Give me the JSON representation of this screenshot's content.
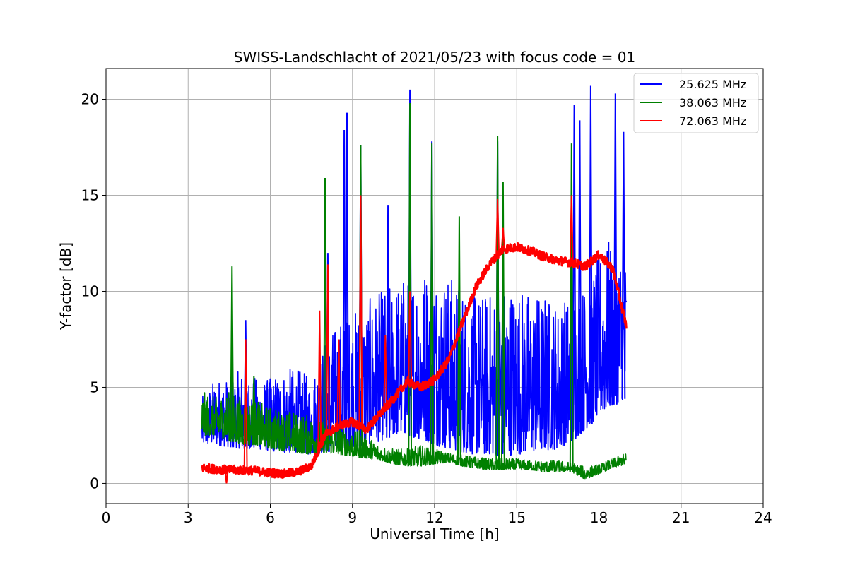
{
  "chart_data": {
    "type": "line",
    "title": "SWISS-Landschlacht of 2021/05/23 with focus code = 01",
    "xlabel": "Universal Time [h]",
    "ylabel": "Y-factor [dB]",
    "xlim": [
      0,
      24
    ],
    "ylim": [
      -1.05,
      21.6
    ],
    "xticks": [
      "0",
      "3",
      "6",
      "9",
      "12",
      "15",
      "18",
      "21",
      "24"
    ],
    "yticks": [
      "0",
      "5",
      "10",
      "15",
      "20"
    ],
    "grid": true,
    "legend": "top-right",
    "series": [
      {
        "name": "25.625 MHz",
        "color": "#0000ff",
        "x": [
          3.5,
          4.0,
          4.5,
          5.0,
          5.5,
          6.0,
          6.5,
          7.0,
          7.5,
          8.0,
          8.5,
          9.0,
          9.5,
          10.0,
          10.5,
          11.0,
          11.5,
          12.0,
          12.5,
          13.0,
          13.5,
          14.0,
          14.5,
          15.0,
          15.5,
          16.0,
          16.5,
          17.0,
          17.5,
          18.0,
          18.5,
          19.0
        ],
        "low": [
          2.0,
          2.0,
          1.9,
          1.8,
          1.8,
          1.7,
          1.6,
          1.6,
          1.5,
          1.6,
          1.8,
          1.9,
          2.0,
          2.2,
          2.5,
          2.5,
          2.3,
          2.0,
          1.8,
          1.6,
          1.5,
          1.5,
          1.4,
          1.5,
          1.6,
          1.7,
          1.8,
          2.2,
          2.8,
          3.5,
          4.0,
          4.5
        ],
        "high": [
          4.5,
          5.5,
          5.5,
          6.0,
          5.5,
          5.5,
          6.0,
          6.0,
          5.5,
          7.5,
          8.5,
          9.0,
          9.5,
          10.0,
          10.5,
          11.0,
          11.5,
          11.5,
          11.0,
          10.5,
          10.0,
          10.0,
          10.5,
          10.5,
          10.0,
          10.0,
          9.5,
          10.0,
          10.5,
          12.0,
          13.0,
          12.0
        ],
        "spikes": [
          [
            4.6,
            7.0
          ],
          [
            5.1,
            8.5
          ],
          [
            8.1,
            12.0
          ],
          [
            8.7,
            18.4
          ],
          [
            8.8,
            19.3
          ],
          [
            9.3,
            17.6
          ],
          [
            10.3,
            14.5
          ],
          [
            11.1,
            20.5
          ],
          [
            11.9,
            17.8
          ],
          [
            14.3,
            17.8
          ],
          [
            17.1,
            19.7
          ],
          [
            17.3,
            18.9
          ],
          [
            17.7,
            20.7
          ],
          [
            18.6,
            20.3
          ],
          [
            18.9,
            18.3
          ]
        ]
      },
      {
        "name": "38.063 MHz",
        "color": "#008000",
        "x": [
          3.5,
          4.0,
          4.5,
          5.0,
          5.5,
          6.0,
          6.5,
          7.0,
          7.5,
          8.0,
          8.5,
          9.0,
          9.5,
          10.0,
          10.5,
          11.0,
          11.5,
          12.0,
          12.5,
          13.0,
          13.5,
          14.0,
          14.5,
          15.0,
          15.5,
          16.0,
          16.5,
          17.0,
          17.5,
          18.0,
          18.5,
          19.0
        ],
        "low": [
          2.5,
          2.5,
          2.2,
          2.0,
          2.0,
          1.8,
          1.7,
          1.6,
          1.5,
          1.6,
          1.5,
          1.4,
          1.3,
          1.2,
          1.0,
          0.9,
          0.9,
          1.0,
          1.1,
          0.9,
          0.8,
          0.7,
          0.7,
          0.7,
          0.7,
          0.6,
          0.6,
          0.6,
          0.2,
          0.5,
          0.8,
          1.0
        ],
        "high": [
          4.8,
          4.5,
          4.8,
          4.5,
          4.3,
          4.0,
          3.8,
          3.7,
          3.5,
          3.2,
          3.0,
          2.8,
          2.5,
          2.0,
          1.8,
          1.8,
          2.0,
          1.8,
          1.6,
          1.5,
          1.4,
          1.3,
          1.3,
          1.3,
          1.2,
          1.2,
          1.2,
          1.1,
          0.9,
          1.0,
          1.3,
          1.6
        ],
        "spikes": [
          [
            4.6,
            11.3
          ],
          [
            5.4,
            5.6
          ],
          [
            8.0,
            15.9
          ],
          [
            9.3,
            17.6
          ],
          [
            11.1,
            19.8
          ],
          [
            11.9,
            17.7
          ],
          [
            12.9,
            13.9
          ],
          [
            14.3,
            18.1
          ],
          [
            14.5,
            15.7
          ],
          [
            17.0,
            17.7
          ]
        ]
      },
      {
        "name": "72.063 MHz",
        "color": "#ff0000",
        "x": [
          3.5,
          4.0,
          4.5,
          5.0,
          5.5,
          6.0,
          6.5,
          7.0,
          7.5,
          8.0,
          8.5,
          9.0,
          9.5,
          10.0,
          10.5,
          11.0,
          11.5,
          12.0,
          12.5,
          13.0,
          13.5,
          14.0,
          14.5,
          15.0,
          15.5,
          16.0,
          16.5,
          17.0,
          17.5,
          18.0,
          18.5,
          19.0
        ],
        "y": [
          0.8,
          0.75,
          0.7,
          0.7,
          0.65,
          0.55,
          0.5,
          0.6,
          0.9,
          2.5,
          3.0,
          3.2,
          2.8,
          3.6,
          4.4,
          5.3,
          5.0,
          5.4,
          6.4,
          8.3,
          10.2,
          11.4,
          12.2,
          12.3,
          12.1,
          11.8,
          11.6,
          11.5,
          11.3,
          11.9,
          11.2,
          8.2
        ],
        "spikes": [
          [
            4.4,
            0.0
          ],
          [
            5.1,
            7.5
          ],
          [
            7.8,
            9.0
          ],
          [
            8.1,
            11.4
          ],
          [
            8.5,
            7.5
          ],
          [
            9.3,
            15.0
          ],
          [
            10.2,
            7.7
          ],
          [
            11.1,
            10.0
          ],
          [
            14.3,
            14.8
          ],
          [
            14.5,
            13.3
          ],
          [
            17.0,
            15.0
          ]
        ]
      }
    ]
  }
}
